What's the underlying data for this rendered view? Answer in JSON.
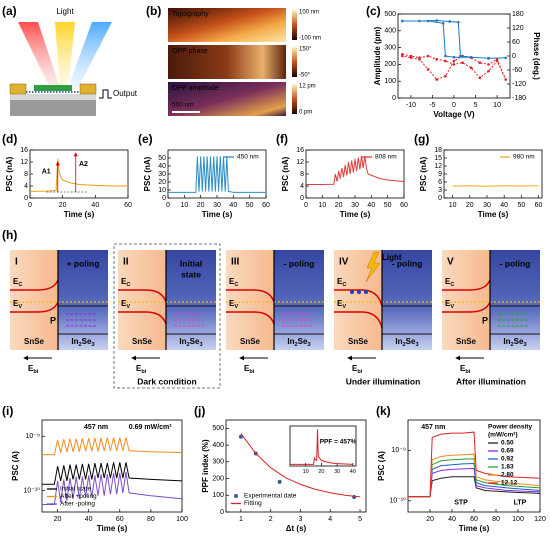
{
  "panel_labels": [
    "(a)",
    "(b)",
    "(c)",
    "(d)",
    "(e)",
    "(f)",
    "(g)",
    "(h)",
    "(i)",
    "(j)",
    "(k)"
  ],
  "schematic": {
    "light": "Light",
    "output": "Output"
  },
  "pfm": {
    "maps": [
      "Topography",
      "OPP phase",
      "OPP amplitude"
    ],
    "colorbar": [
      [
        "100 nm",
        "-100 nm"
      ],
      [
        "150°",
        "-50°"
      ],
      [
        "12 pm",
        "0 pm"
      ]
    ],
    "scale_bar": "500 nm"
  },
  "chart_data": [
    {
      "type": "line",
      "x_label": "Voltage (V)",
      "y_label": "Amplitude (pm)",
      "y2_label": "Phase (deg.)",
      "xlim": [
        -13,
        13
      ],
      "xticks": [
        -10,
        -5,
        0,
        5,
        10
      ],
      "ylim": [
        0,
        500
      ],
      "yticks": [
        0,
        100,
        200,
        300,
        400,
        500
      ],
      "y2lim": [
        -180,
        180
      ],
      "y2ticks": [
        -180,
        -120,
        -60,
        0,
        60,
        120,
        180
      ],
      "series": [
        {
          "color": "#e0202a",
          "mode": "lines+markers",
          "dashed": true,
          "x": [
            -12,
            -10,
            -8,
            -6,
            -4,
            -2,
            0,
            2,
            4,
            6,
            8,
            10,
            12,
            10,
            8,
            6,
            4,
            2,
            0,
            -2,
            -4,
            -6,
            -8,
            -10,
            -12
          ],
          "values": [
            260,
            250,
            240,
            250,
            230,
            220,
            200,
            210,
            180,
            120,
            160,
            220,
            110,
            230,
            200,
            210,
            240,
            250,
            220,
            130,
            110,
            170,
            230,
            240,
            250
          ]
        },
        {
          "color": "#1f78c1",
          "mode": "lines+markers",
          "axis": "y2",
          "x": [
            -12,
            -8,
            -4,
            -1,
            1,
            1.5,
            4,
            8,
            12,
            8,
            4,
            0,
            -2,
            -2.5,
            -6,
            -12
          ],
          "values": [
            150,
            150,
            152,
            148,
            145,
            0,
            -5,
            -10,
            -8,
            -10,
            -5,
            -5,
            0,
            140,
            150,
            150
          ]
        }
      ]
    },
    {
      "type": "line",
      "x_label": "Time (s)",
      "y_label": "PSC (nA)",
      "xlim": [
        0,
        60
      ],
      "xticks": [
        0,
        20,
        40,
        60
      ],
      "ylim": [
        0,
        16
      ],
      "yticks": [
        0,
        4,
        8,
        12,
        16
      ],
      "annotations": [
        "A1",
        "A2"
      ],
      "series": [
        {
          "color": "#f39c12",
          "x": [
            0,
            10,
            16,
            17,
            18,
            20,
            25,
            30,
            40,
            50,
            60
          ],
          "values": [
            2.2,
            2.3,
            2.5,
            13,
            8,
            6,
            5,
            4.5,
            4.2,
            4,
            4
          ]
        }
      ]
    },
    {
      "type": "line",
      "x_label": "Time (s)",
      "y_label": "PSC (nA)",
      "xlim": [
        0,
        60
      ],
      "xticks": [
        0,
        10,
        20,
        30,
        40,
        50,
        60
      ],
      "ylim": [
        0,
        60
      ],
      "yticks": [
        0,
        10,
        20,
        30,
        40,
        50
      ],
      "legend": "upper right",
      "series": [
        {
          "name": "450 nm",
          "color": "#2a8fc4",
          "x": [
            0,
            10,
            17,
            18,
            19,
            20,
            21,
            22,
            23,
            24,
            25,
            26,
            27,
            28,
            29,
            30,
            31,
            32,
            33,
            34,
            35,
            36,
            37,
            38,
            40,
            50,
            60
          ],
          "values": [
            7,
            7,
            7,
            52,
            8,
            52,
            8,
            52,
            8,
            52,
            8,
            52,
            8,
            52,
            8,
            52,
            8,
            52,
            8,
            52,
            8,
            52,
            8,
            8,
            7,
            7,
            7
          ]
        }
      ]
    },
    {
      "type": "line",
      "x_label": "Time (s)",
      "y_label": "PSC (nA)",
      "xlim": [
        0,
        60
      ],
      "xticks": [
        0,
        10,
        20,
        30,
        40,
        50,
        60
      ],
      "ylim": [
        0,
        16
      ],
      "yticks": [
        0,
        4,
        8,
        12,
        16
      ],
      "legend": "upper right",
      "series": [
        {
          "name": "808 nm",
          "color": "#e03c3c",
          "x": [
            0,
            10,
            17,
            18,
            19,
            20,
            21,
            22,
            23,
            24,
            25,
            26,
            27,
            28,
            29,
            30,
            31,
            32,
            33,
            34,
            35,
            36,
            37,
            38,
            45,
            50,
            60
          ],
          "values": [
            4.5,
            4.5,
            4.6,
            8,
            5.5,
            9,
            6.5,
            10,
            7,
            11,
            7.5,
            12,
            8,
            12.5,
            8.5,
            13,
            9,
            13.5,
            9.5,
            14,
            10,
            14,
            10,
            8,
            6.5,
            6,
            5.5
          ]
        }
      ]
    },
    {
      "type": "line",
      "x_label": "Time (s)",
      "y_label": "PSC (nA)",
      "xlim": [
        5,
        62
      ],
      "xticks": [
        10,
        20,
        30,
        40,
        50,
        60
      ],
      "ylim": [
        0,
        18
      ],
      "yticks": [
        0,
        3,
        6,
        9,
        12,
        15,
        18
      ],
      "legend": "upper right",
      "series": [
        {
          "name": "980 nm",
          "color": "#f5a623",
          "x": [
            10,
            20,
            30,
            40,
            50,
            60
          ],
          "values": [
            4.5,
            4.6,
            4.4,
            4.6,
            4.5,
            4.6
          ]
        }
      ]
    },
    {
      "type": "line",
      "log": true,
      "x_label": "Time (s)",
      "y_label": "PSC (A)",
      "xlim": [
        10,
        100
      ],
      "xticks": [
        20,
        40,
        60,
        80,
        100
      ],
      "ylim": [
        4e-11,
        2e-09
      ],
      "yticks": [
        {
          "value": 1e-10,
          "label": "10⁻¹⁰"
        },
        {
          "value": 1e-09,
          "label": "10⁻⁹"
        }
      ],
      "legend": "lower left",
      "annotations": [
        "457 nm",
        "0.69 mW/cm²"
      ],
      "x": [
        10,
        18,
        20,
        22,
        24,
        26,
        28,
        30,
        32,
        34,
        36,
        38,
        40,
        42,
        44,
        46,
        48,
        50,
        52,
        54,
        56,
        58,
        60,
        62,
        64,
        66,
        80,
        100
      ],
      "series": [
        {
          "name": "Initial state",
          "color": "#000000",
          "values": [
            1.3e-10,
            1.3e-10,
            2.8e-10,
            1.5e-10,
            2.9e-10,
            1.5e-10,
            3e-10,
            1.6e-10,
            3e-10,
            1.6e-10,
            3.1e-10,
            1.6e-10,
            3.1e-10,
            1.6e-10,
            3.2e-10,
            1.7e-10,
            3.2e-10,
            1.7e-10,
            3.2e-10,
            1.7e-10,
            3.3e-10,
            1.7e-10,
            3.3e-10,
            1.7e-10,
            3.3e-10,
            1.7e-10,
            1.6e-10,
            1.5e-10
          ]
        },
        {
          "name": "After +poling",
          "color": "#f28c1e",
          "values": [
            4.6e-10,
            4.6e-10,
            8.5e-10,
            5e-10,
            8.8e-10,
            5.1e-10,
            9e-10,
            5.2e-10,
            9e-10,
            5.2e-10,
            9.2e-10,
            5.3e-10,
            9.2e-10,
            5.3e-10,
            9.3e-10,
            5.3e-10,
            9.3e-10,
            5.4e-10,
            9.4e-10,
            5.4e-10,
            9.4e-10,
            5.4e-10,
            9.5e-10,
            5.4e-10,
            9.5e-10,
            5.4e-10,
            5.2e-10,
            5e-10
          ]
        },
        {
          "name": "After -poling",
          "color": "#7b4fc9",
          "values": [
            5.5e-11,
            5.5e-11,
            1.5e-10,
            6e-11,
            1.6e-10,
            6.5e-11,
            1.7e-10,
            7e-11,
            1.8e-10,
            7e-11,
            1.8e-10,
            7.5e-11,
            1.9e-10,
            7.5e-11,
            1.9e-10,
            8e-11,
            2e-10,
            8e-11,
            2e-10,
            8.5e-11,
            2.1e-10,
            8.5e-11,
            2.1e-10,
            9e-11,
            2.2e-10,
            9e-11,
            8e-11,
            7e-11
          ]
        }
      ]
    },
    {
      "type": "scatter",
      "x_label": "Δt (s)",
      "y_label": "PPF index (%)",
      "xlim": [
        0.5,
        5.2
      ],
      "xticks": [
        1,
        2,
        3,
        4,
        5
      ],
      "ylim": [
        0,
        550
      ],
      "yticks": [
        0,
        100,
        200,
        300,
        400,
        500
      ],
      "legend": "lower left",
      "series": [
        {
          "name": "Experimental date",
          "color": "#3c5a99",
          "mode": "markers",
          "x": [
            1,
            1.5,
            2.3,
            4.8
          ],
          "values": [
            450,
            350,
            180,
            90
          ]
        },
        {
          "name": "Fitting",
          "color": "#e0202a",
          "x": [
            1,
            1.5,
            2,
            2.5,
            3,
            3.5,
            4,
            4.5,
            5
          ],
          "values": [
            470,
            350,
            265,
            205,
            165,
            135,
            115,
            100,
            90
          ]
        }
      ]
    },
    {
      "type": "line",
      "xlim": [
        0,
        42
      ],
      "xticks": [
        10,
        20,
        30,
        40
      ],
      "ylim": [
        0,
        5
      ],
      "annotations": [
        "PPF = 457%"
      ],
      "series": [
        {
          "color": "#e0202a",
          "x": [
            0,
            14,
            15,
            15.5,
            16,
            17,
            17.5,
            18,
            20,
            25,
            30,
            40
          ],
          "values": [
            0.2,
            0.2,
            0.2,
            1,
            0.8,
            0.7,
            4.6,
            1.2,
            0.7,
            0.4,
            0.3,
            0.2
          ]
        }
      ]
    },
    {
      "type": "line",
      "log": true,
      "x_label": "Time (s)",
      "y_label": "PSC (A)",
      "xlim": [
        0,
        120
      ],
      "xticks": [
        20,
        40,
        60,
        80,
        100,
        120
      ],
      "ylim": [
        6e-11,
        4e-09
      ],
      "yticks": [
        {
          "value": 1e-10,
          "label": "10⁻¹⁰"
        },
        {
          "value": 1e-09,
          "label": "10⁻⁹"
        }
      ],
      "legend": "upper right",
      "legend_title": [
        "Power density",
        "(mW/cm²)"
      ],
      "annotations": [
        "457 nm",
        "STP",
        "LTP"
      ],
      "x": [
        0,
        20,
        22,
        30,
        40,
        50,
        60,
        62,
        70,
        90,
        120
      ],
      "series": [
        {
          "name": "0.50",
          "color": "#222222",
          "values": [
            1.2e-10,
            1.2e-10,
            2.5e-10,
            2.8e-10,
            3e-10,
            3e-10,
            3e-10,
            1.8e-10,
            1.6e-10,
            1.5e-10,
            1.4e-10
          ]
        },
        {
          "name": "0.69",
          "color": "#8a2be2",
          "values": [
            1.2e-10,
            1.2e-10,
            3.5e-10,
            4e-10,
            4.2e-10,
            4.3e-10,
            4.4e-10,
            2e-10,
            1.8e-10,
            1.6e-10,
            1.5e-10
          ]
        },
        {
          "name": "0.92",
          "color": "#1f5fd1",
          "values": [
            1.2e-10,
            1.2e-10,
            4.2e-10,
            5e-10,
            5.2e-10,
            5.4e-10,
            5.5e-10,
            2.3e-10,
            2e-10,
            1.8e-10,
            1.6e-10
          ]
        },
        {
          "name": "1.83",
          "color": "#2ca02c",
          "values": [
            1.2e-10,
            1.2e-10,
            5.2e-10,
            6.2e-10,
            6.5e-10,
            6.7e-10,
            6.8e-10,
            2.6e-10,
            2.3e-10,
            2e-10,
            1.8e-10
          ]
        },
        {
          "name": "2.80",
          "color": "#f28c1e",
          "values": [
            1.2e-10,
            1.2e-10,
            6.5e-10,
            7.6e-10,
            8e-10,
            8.2e-10,
            8.4e-10,
            3e-10,
            2.6e-10,
            2.3e-10,
            2e-10
          ]
        },
        {
          "name": "12.12",
          "color": "#e0202a",
          "values": [
            1.2e-10,
            1.2e-10,
            1.8e-09,
            2.1e-09,
            2.2e-09,
            2.2e-09,
            2.3e-09,
            4e-10,
            3.5e-10,
            3e-10,
            2.8e-10
          ]
        }
      ]
    }
  ],
  "band_diagram": {
    "panels": [
      {
        "numeral": "I",
        "region": [
          "+ poling"
        ],
        "polarization": "P"
      },
      {
        "numeral": "II",
        "region": [
          "Initial",
          "state"
        ]
      },
      {
        "numeral": "III",
        "region": [
          "- poling"
        ]
      },
      {
        "numeral": "IV",
        "region": [
          "- poling"
        ],
        "light": "Light"
      },
      {
        "numeral": "V",
        "region": [
          "- poling"
        ],
        "polarization": "P"
      }
    ],
    "ec": [
      "E",
      "C"
    ],
    "ev": [
      "E",
      "V"
    ],
    "left": "SnSe",
    "right": [
      "In",
      "2",
      "Se",
      "3"
    ],
    "field": [
      "E",
      "bi"
    ],
    "conditions": [
      "Dark condition",
      "Under illumination",
      "After illumination"
    ]
  }
}
